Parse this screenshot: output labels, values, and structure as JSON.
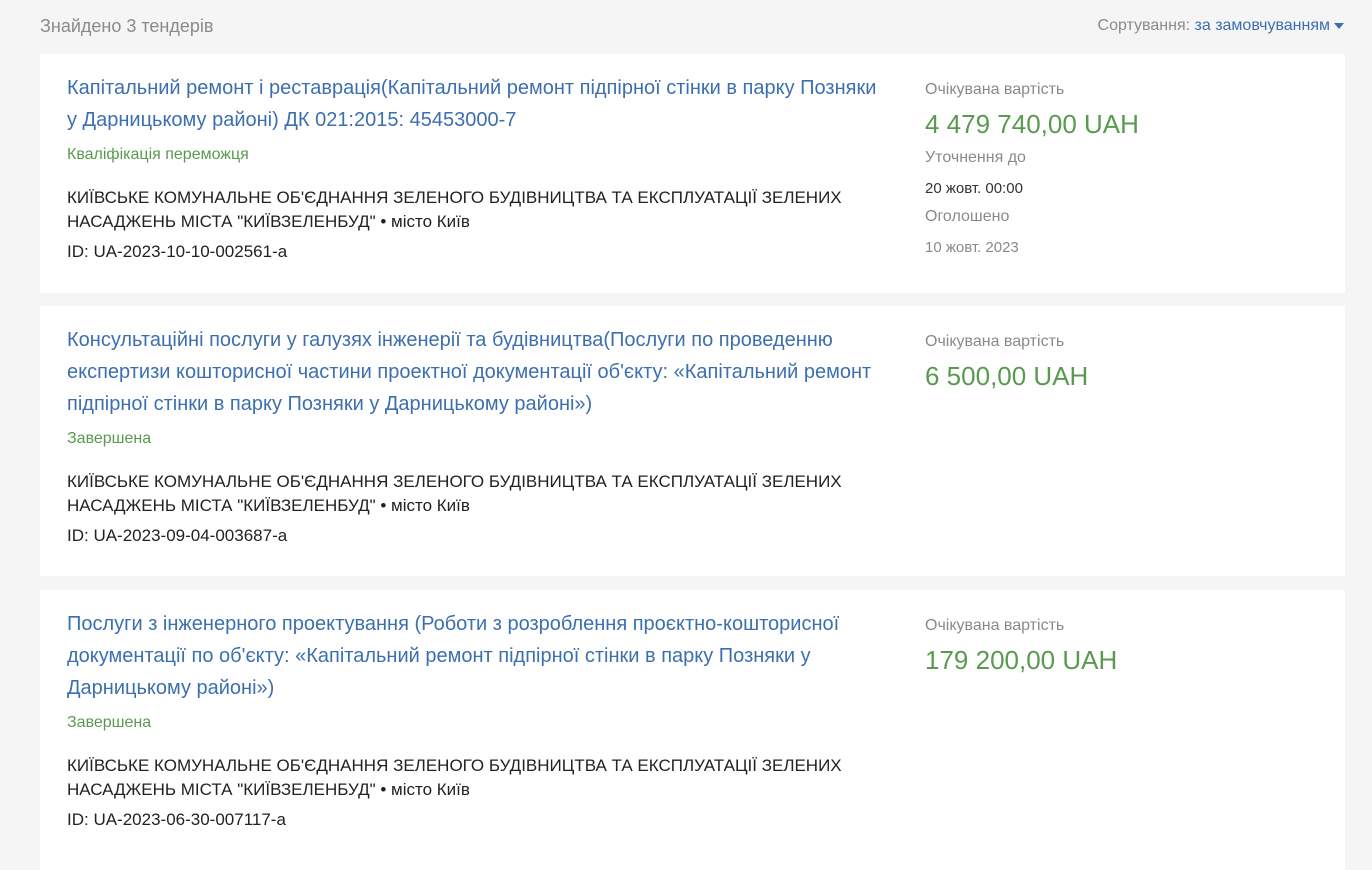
{
  "header": {
    "found": "Знайдено 3 тендерів",
    "sort_label": "Сортування:",
    "sort_value": "за замовчуванням"
  },
  "tenders": [
    {
      "title": "Капітальний ремонт і реставрація(Капітальний ремонт підпірної стінки в парку Позняки у Дарницькому районі) ДК 021:2015: 45453000-7",
      "status": "Кваліфікація переможця",
      "org": "КИЇВСЬКЕ КОМУНАЛЬНЕ ОБ'ЄДНАННЯ ЗЕЛЕНОГО БУДІВНИЦТВА ТА ЕКСПЛУАТАЦІЇ ЗЕЛЕНИХ НАСАДЖЕНЬ МІСТА \"КИЇВЗЕЛЕНБУД\" • місто Київ",
      "id": "ID: UA-2023-10-10-002561-a",
      "value_label": "Очікувана вартість",
      "value": "4 479 740,00 UAH",
      "clar_label": "Уточнення до",
      "clar_value": "20 жовт. 00:00",
      "ann_label": "Оголошено",
      "ann_value": "10 жовт. 2023"
    },
    {
      "title": "Консультаційні послуги у галузях інженерії та будівництва(Послуги по проведенню експертизи кошторисної частини проектної документації об'єкту: «Капітальний ремонт підпірної стінки в парку Позняки у Дарницькому районі»)",
      "status": "Завершена",
      "org": "КИЇВСЬКЕ КОМУНАЛЬНЕ ОБ'ЄДНАННЯ ЗЕЛЕНОГО БУДІВНИЦТВА ТА ЕКСПЛУАТАЦІЇ ЗЕЛЕНИХ НАСАДЖЕНЬ МІСТА \"КИЇВЗЕЛЕНБУД\" • місто Київ",
      "id": "ID: UA-2023-09-04-003687-a",
      "value_label": "Очікувана вартість",
      "value": "6 500,00 UAH"
    },
    {
      "title": "Послуги з інженерного проектування (Роботи з розроблення проєктно-кошторисної документації по об'єкту: «Капітальний ремонт підпірної стінки в парку Позняки у Дарницькому районі»)",
      "status": "Завершена",
      "org": "КИЇВСЬКЕ КОМУНАЛЬНЕ ОБ'ЄДНАННЯ ЗЕЛЕНОГО БУДІВНИЦТВА ТА ЕКСПЛУАТАЦІЇ ЗЕЛЕНИХ НАСАДЖЕНЬ МІСТА \"КИЇВЗЕЛЕНБУД\" • місто Київ",
      "id": "ID: UA-2023-06-30-007117-a",
      "value_label": "Очікувана вартість",
      "value": "179 200,00 UAH"
    }
  ],
  "colors": {
    "link": "#3d6fb0",
    "green": "#5a9a50",
    "muted": "#8a8a8a",
    "background": "#f5f5f5"
  }
}
